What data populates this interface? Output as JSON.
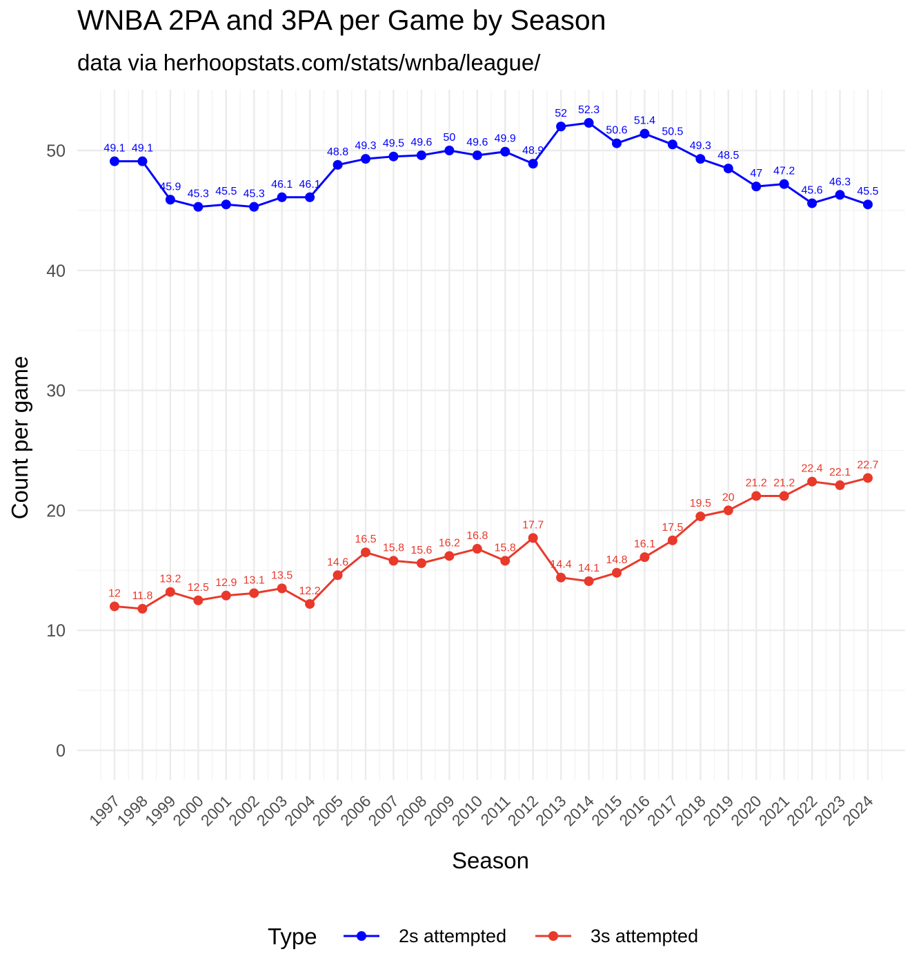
{
  "chart_data": {
    "type": "line",
    "title": "WNBA 2PA and 3PA per Game by Season",
    "subtitle": "data via herhoopstats.com/stats/wnba/league/",
    "xlabel": "Season",
    "ylabel": "Count per game",
    "ylim": [
      -2,
      54.5
    ],
    "yticks": [
      "0",
      "10",
      "20",
      "30",
      "40",
      "50"
    ],
    "grid": true,
    "legend": {
      "title": "Type",
      "placement": "bottom"
    },
    "categories": [
      "1997",
      "1998",
      "1999",
      "2000",
      "2001",
      "2002",
      "2003",
      "2004",
      "2005",
      "2006",
      "2007",
      "2008",
      "2009",
      "2010",
      "2011",
      "2012",
      "2013",
      "2014",
      "2015",
      "2016",
      "2017",
      "2018",
      "2019",
      "2020",
      "2021",
      "2022",
      "2023",
      "2024"
    ],
    "series": [
      {
        "name": "2s attempted",
        "color": "#0000FF",
        "values": [
          49.1,
          49.1,
          45.9,
          45.3,
          45.5,
          45.3,
          46.1,
          46.1,
          48.8,
          49.3,
          49.5,
          49.6,
          50,
          49.6,
          49.9,
          48.9,
          52,
          52.3,
          50.6,
          51.4,
          50.5,
          49.3,
          48.5,
          47,
          47.2,
          45.6,
          46.3,
          45.5
        ],
        "labels": [
          "49.1",
          "49.1",
          "45.9",
          "45.3",
          "45.5",
          "45.3",
          "46.1",
          "46.1",
          "48.8",
          "49.3",
          "49.5",
          "49.6",
          "50",
          "49.6",
          "49.9",
          "48.9",
          "52",
          "52.3",
          "50.6",
          "51.4",
          "50.5",
          "49.3",
          "48.5",
          "47",
          "47.2",
          "45.6",
          "46.3",
          "45.5"
        ]
      },
      {
        "name": "3s attempted",
        "color": "#E8392B",
        "values": [
          12,
          11.8,
          13.2,
          12.5,
          12.9,
          13.1,
          13.5,
          12.2,
          14.6,
          16.5,
          15.8,
          15.6,
          16.2,
          16.8,
          15.8,
          17.7,
          14.4,
          14.1,
          14.8,
          16.1,
          17.5,
          19.5,
          20,
          21.2,
          21.2,
          22.4,
          22.1,
          22.7
        ],
        "labels": [
          "12",
          "11.8",
          "13.2",
          "12.5",
          "12.9",
          "13.1",
          "13.5",
          "12.2",
          "14.6",
          "16.5",
          "15.8",
          "15.6",
          "16.2",
          "16.8",
          "15.8",
          "17.7",
          "14.4",
          "14.1",
          "14.8",
          "16.1",
          "17.5",
          "19.5",
          "20",
          "21.2",
          "21.2",
          "22.4",
          "22.1",
          "22.7"
        ]
      }
    ]
  }
}
